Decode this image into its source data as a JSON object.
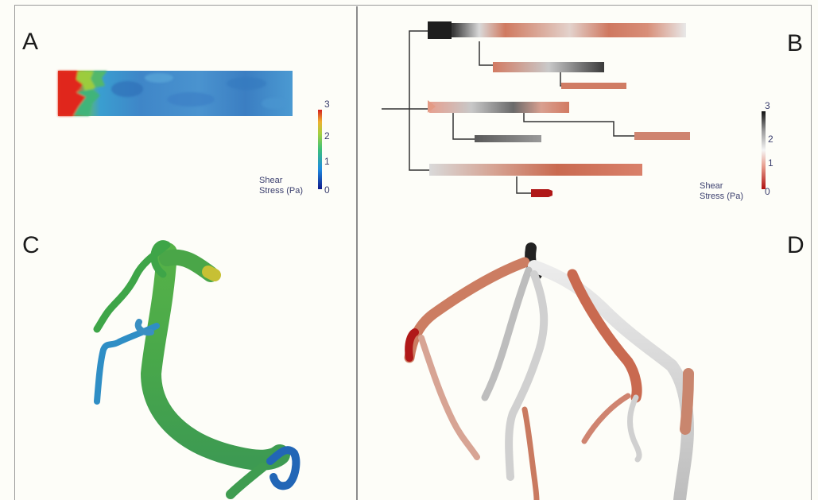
{
  "panels": {
    "a": {
      "letter": "A"
    },
    "b": {
      "letter": "B"
    },
    "c": {
      "letter": "C"
    },
    "d": {
      "letter": "D"
    }
  },
  "colorbar_a": {
    "ticks": [
      "3",
      "2",
      "1",
      "0"
    ],
    "label_line1": "Shear",
    "label_line2": "Stress (Pa)",
    "colormap": "jet",
    "range": [
      0,
      3
    ]
  },
  "colorbar_b": {
    "ticks": [
      "3",
      "2",
      "1",
      "0"
    ],
    "label_line1": "Shear",
    "label_line2": "Stress (Pa)",
    "colormap": "red-white-black",
    "range": [
      0,
      3
    ]
  },
  "colors": {
    "tree_line": "#333333",
    "vessel_green": "#3fa646",
    "vessel_blue": "#2f7dc4",
    "vessel_white": "#e6e6e6",
    "vessel_red": "#c96a50"
  }
}
